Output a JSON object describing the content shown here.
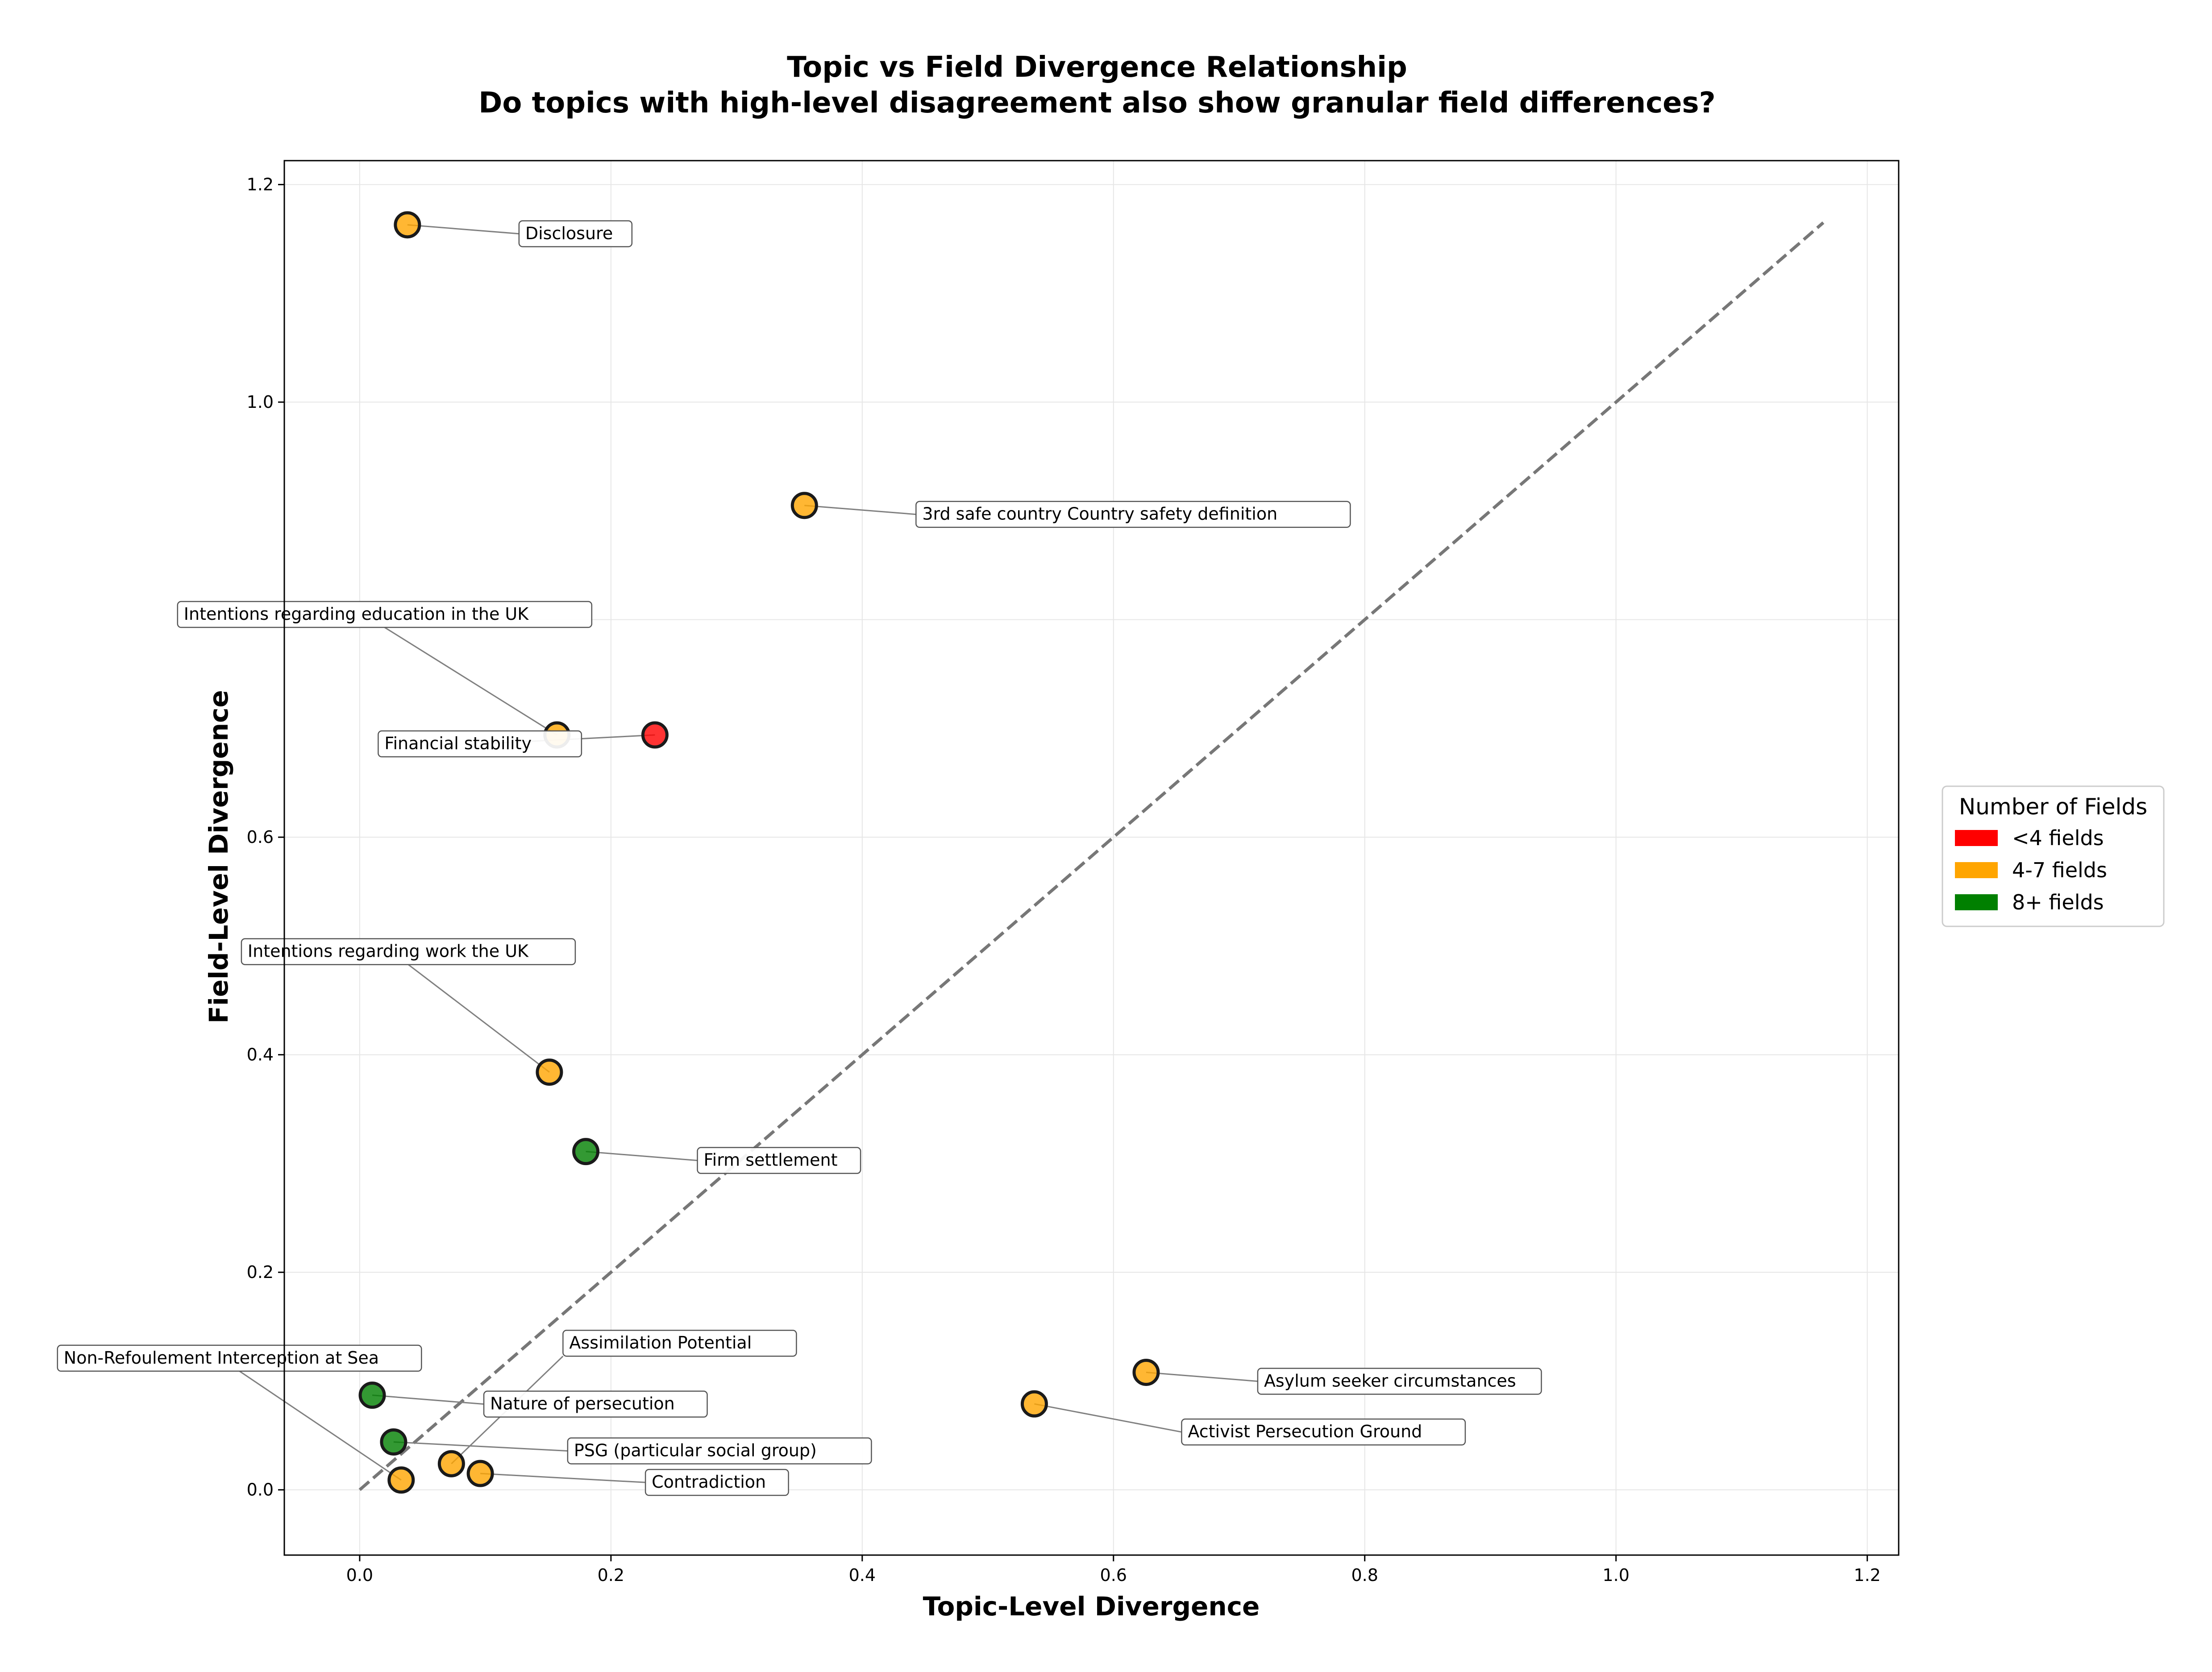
{
  "chart_data": {
    "type": "scatter",
    "title": "Topic vs Field Divergence Relationship",
    "subtitle": "Do topics with high-level disagreement also show granular field differences?",
    "xlabel": "Topic-Level Divergence",
    "ylabel": "Field-Level Divergence",
    "xlim": [
      -0.06,
      1.225
    ],
    "ylim": [
      -0.06,
      1.222
    ],
    "xticks": [
      0.0,
      0.2,
      0.4,
      0.6,
      0.8,
      1.0,
      1.2
    ],
    "xtick_labels": [
      "0.0",
      "0.2",
      "0.4",
      "0.6",
      "0.8",
      "1.0",
      "1.2"
    ],
    "yticks": [
      0.0,
      0.2,
      0.4,
      0.6,
      1.0,
      1.2
    ],
    "ytick_labels": [
      "0.0",
      "0.2",
      "0.4",
      "0.6",
      "1.0",
      "1.2"
    ],
    "grid_lines_y": [
      0.0,
      0.2,
      0.4,
      0.6,
      0.8,
      1.0,
      1.2
    ],
    "grid": true,
    "diagonal_reference": {
      "from": [
        0.0,
        0.0
      ],
      "to": [
        1.165,
        1.165
      ],
      "color": "#777777",
      "style": "dashed"
    },
    "legend": {
      "title": "Number of Fields",
      "placement": "right",
      "items": [
        {
          "label": "<4 fields",
          "color": "#ff0000"
        },
        {
          "label": "4-7 fields",
          "color": "#ffa500"
        },
        {
          "label": "8+ fields",
          "color": "#008000"
        }
      ]
    },
    "points": [
      {
        "x": 0.038,
        "y": 1.163,
        "group": "4-7 fields",
        "label": "Disclosure"
      },
      {
        "x": 0.354,
        "y": 0.905,
        "group": "4-7 fields",
        "label": "3rd safe country Country safety definition"
      },
      {
        "x": 0.157,
        "y": 0.694,
        "group": "4-7 fields",
        "label": "Intentions regarding education in the UK"
      },
      {
        "x": 0.235,
        "y": 0.694,
        "group": "<4 fields",
        "label": "Financial stability"
      },
      {
        "x": 0.151,
        "y": 0.384,
        "group": "4-7 fields",
        "label": "Intentions regarding work the UK"
      },
      {
        "x": 0.18,
        "y": 0.311,
        "group": "8+ fields",
        "label": "Firm settlement"
      },
      {
        "x": 0.626,
        "y": 0.108,
        "group": "4-7 fields",
        "label": "Asylum seeker circumstances"
      },
      {
        "x": 0.537,
        "y": 0.079,
        "group": "4-7 fields",
        "label": "Activist Persecution Ground"
      },
      {
        "x": 0.01,
        "y": 0.087,
        "group": "8+ fields",
        "label": "Nature of persecution"
      },
      {
        "x": 0.027,
        "y": 0.044,
        "group": "8+ fields",
        "label": "PSG (particular social group)"
      },
      {
        "x": 0.073,
        "y": 0.024,
        "group": "4-7 fields",
        "label": "Assimilation Potential"
      },
      {
        "x": 0.096,
        "y": 0.015,
        "group": "4-7 fields",
        "label": "Contradiction"
      },
      {
        "x": 0.033,
        "y": 0.009,
        "group": "4-7 fields",
        "label": "Non-Refoulement Interception at Sea"
      }
    ]
  }
}
